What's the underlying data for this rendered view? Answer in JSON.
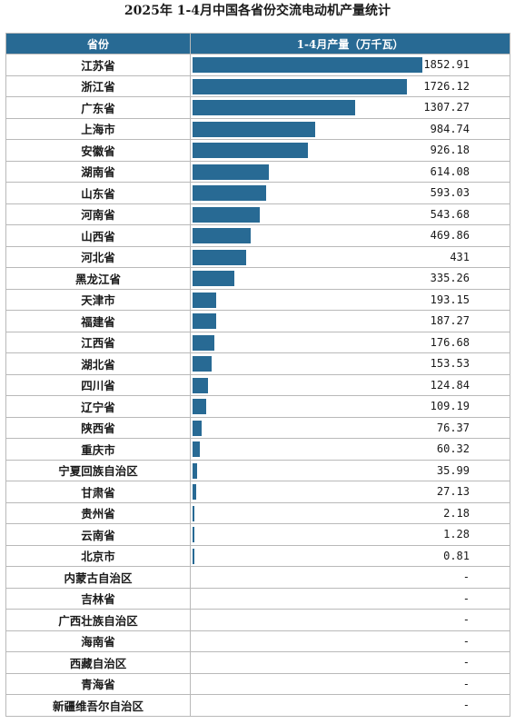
{
  "title": "2025年 1-4月中国各省份交流电动机产量统计",
  "chart_data": {
    "type": "bar",
    "orientation": "horizontal",
    "header": {
      "category": "省份",
      "value": "1-4月产量（万千瓦）"
    },
    "bar_color": "#286a94",
    "header_color": "#286a94",
    "xlim": [
      0,
      1852.91
    ],
    "rows": [
      {
        "province": "江苏省",
        "value": 1852.91,
        "label": "1852.91"
      },
      {
        "province": "浙江省",
        "value": 1726.12,
        "label": "1726.12"
      },
      {
        "province": "广东省",
        "value": 1307.27,
        "label": "1307.27"
      },
      {
        "province": "上海市",
        "value": 984.74,
        "label": "984.74"
      },
      {
        "province": "安徽省",
        "value": 926.18,
        "label": "926.18"
      },
      {
        "province": "湖南省",
        "value": 614.08,
        "label": "614.08"
      },
      {
        "province": "山东省",
        "value": 593.03,
        "label": "593.03"
      },
      {
        "province": "河南省",
        "value": 543.68,
        "label": "543.68"
      },
      {
        "province": "山西省",
        "value": 469.86,
        "label": "469.86"
      },
      {
        "province": "河北省",
        "value": 431,
        "label": "431"
      },
      {
        "province": "黑龙江省",
        "value": 335.26,
        "label": "335.26"
      },
      {
        "province": "天津市",
        "value": 193.15,
        "label": "193.15"
      },
      {
        "province": "福建省",
        "value": 187.27,
        "label": "187.27"
      },
      {
        "province": "江西省",
        "value": 176.68,
        "label": "176.68"
      },
      {
        "province": "湖北省",
        "value": 153.53,
        "label": "153.53"
      },
      {
        "province": "四川省",
        "value": 124.84,
        "label": "124.84"
      },
      {
        "province": "辽宁省",
        "value": 109.19,
        "label": "109.19"
      },
      {
        "province": "陕西省",
        "value": 76.37,
        "label": "76.37"
      },
      {
        "province": "重庆市",
        "value": 60.32,
        "label": "60.32"
      },
      {
        "province": "宁夏回族自治区",
        "value": 35.99,
        "label": "35.99"
      },
      {
        "province": "甘肃省",
        "value": 27.13,
        "label": "27.13"
      },
      {
        "province": "贵州省",
        "value": 2.18,
        "label": "2.18"
      },
      {
        "province": "云南省",
        "value": 1.28,
        "label": "1.28"
      },
      {
        "province": "北京市",
        "value": 0.81,
        "label": "0.81"
      },
      {
        "province": "内蒙古自治区",
        "value": null,
        "label": "-"
      },
      {
        "province": "吉林省",
        "value": null,
        "label": "-"
      },
      {
        "province": "广西壮族自治区",
        "value": null,
        "label": "-"
      },
      {
        "province": "海南省",
        "value": null,
        "label": "-"
      },
      {
        "province": "西藏自治区",
        "value": null,
        "label": "-"
      },
      {
        "province": "青海省",
        "value": null,
        "label": "-"
      },
      {
        "province": "新疆维吾尔自治区",
        "value": null,
        "label": "-"
      }
    ]
  }
}
